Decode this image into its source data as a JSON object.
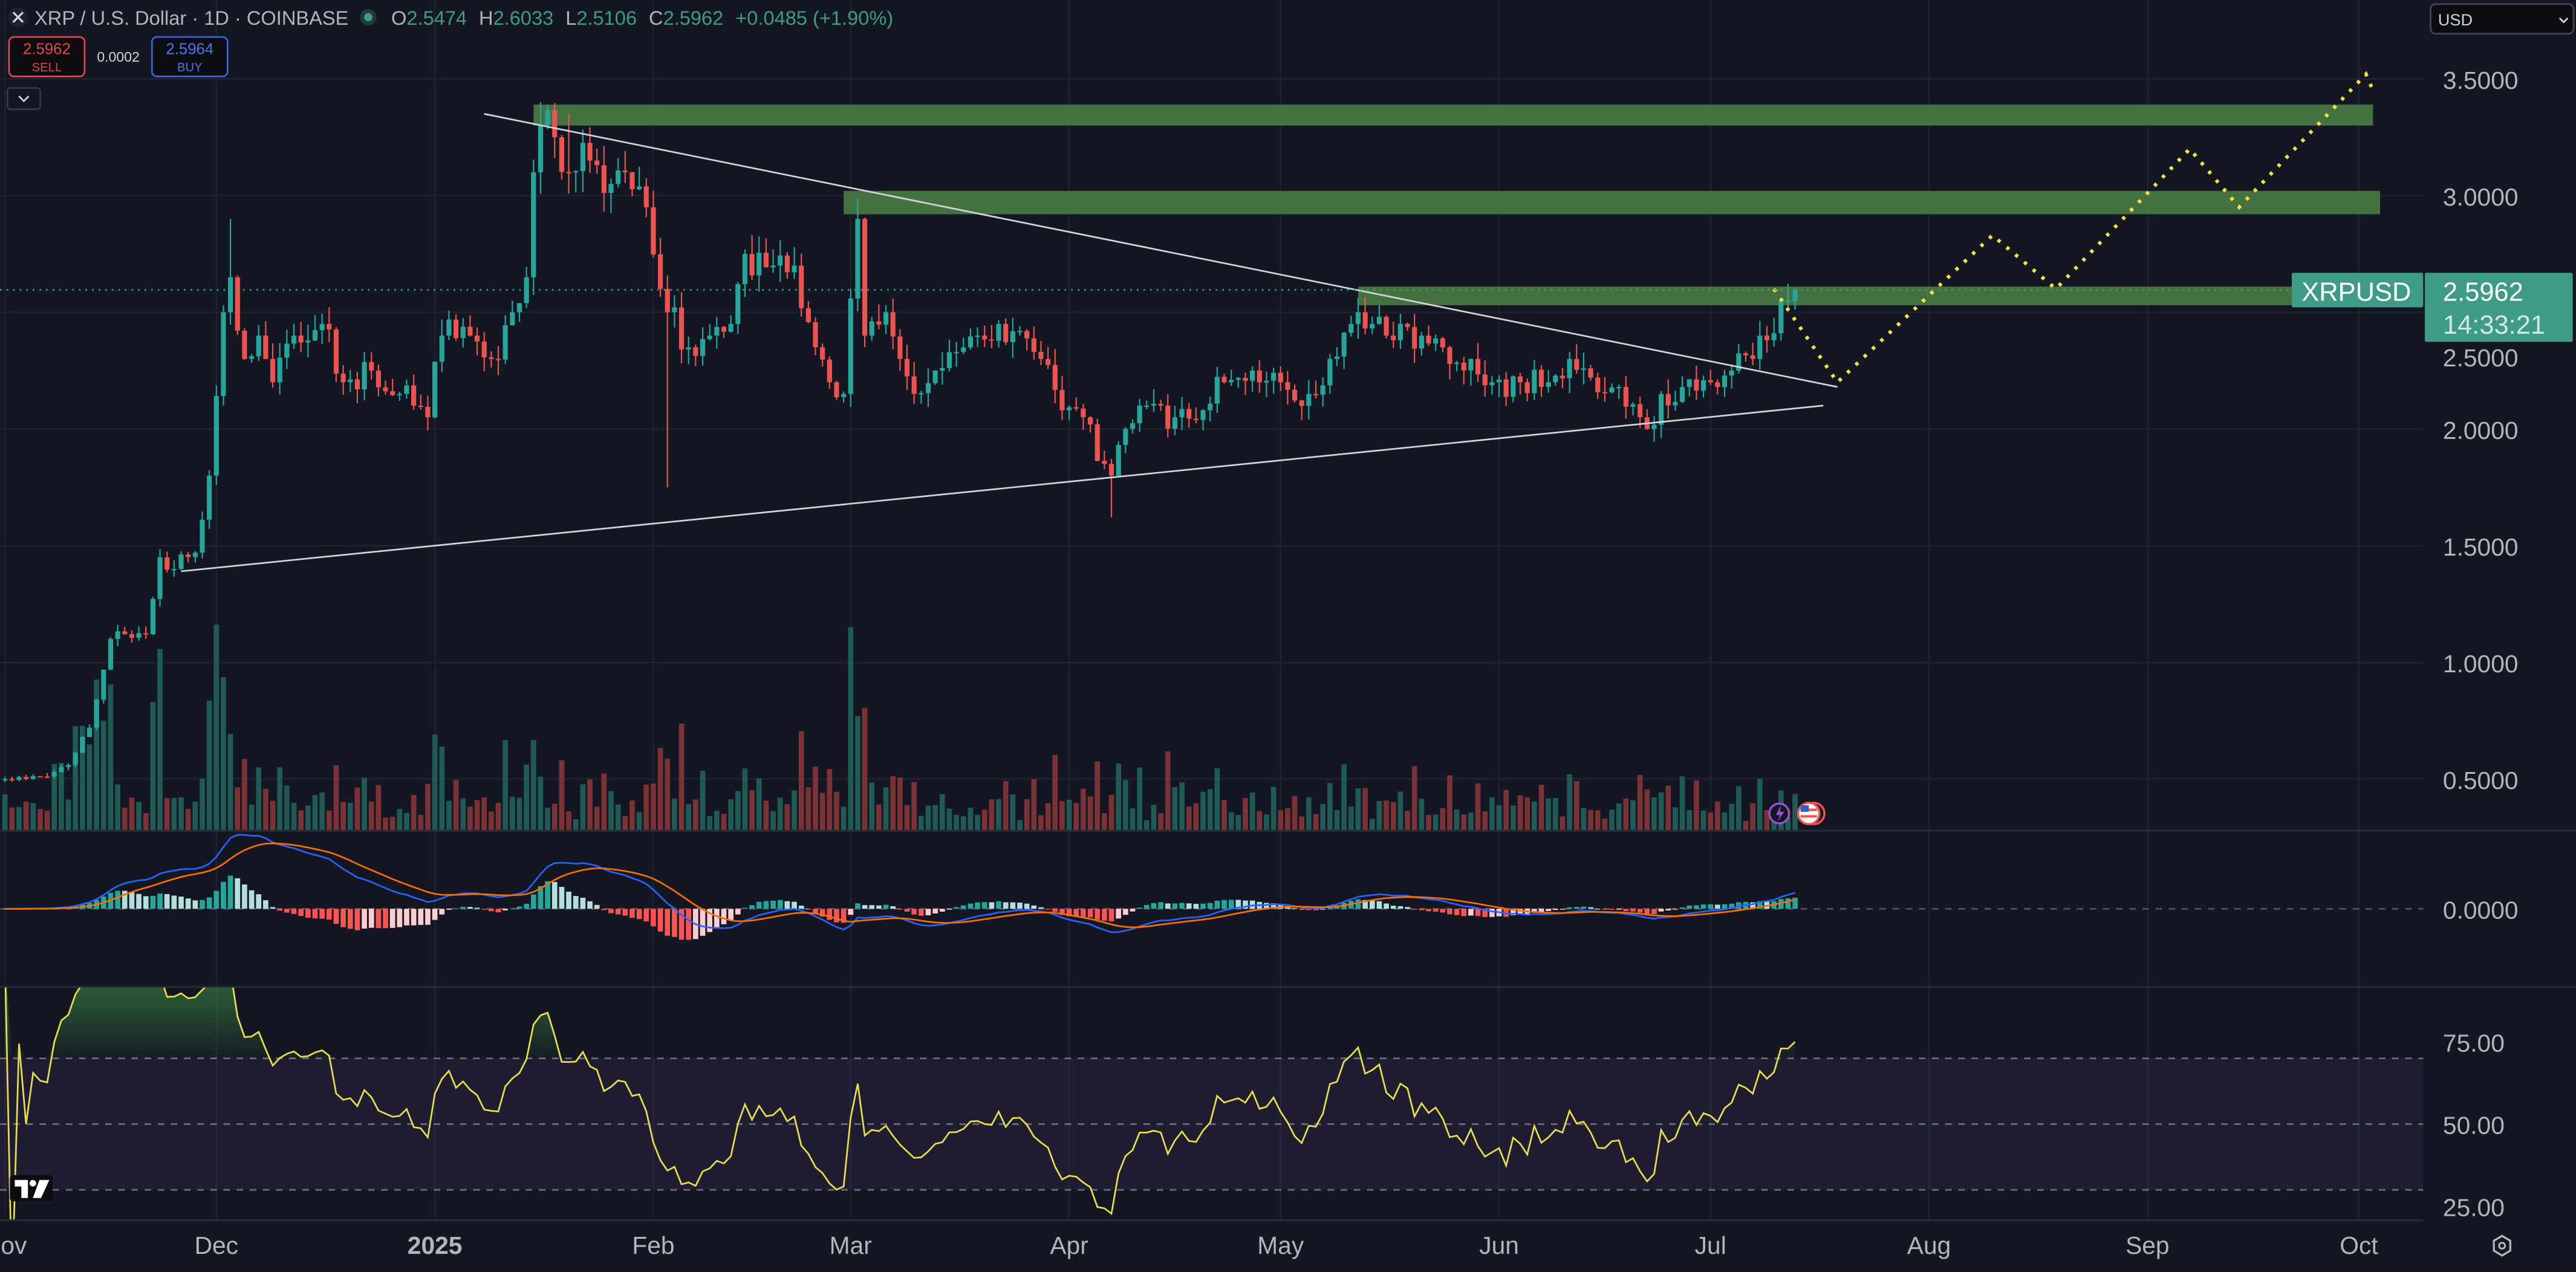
{
  "header": {
    "symbol_title": "XRP / U.S. Dollar · 1D · COINBASE",
    "ohlc": {
      "o_label": "O",
      "o": "2.5474",
      "h_label": "H",
      "h": "2.6033",
      "l_label": "L",
      "l": "2.5106",
      "c_label": "C",
      "c": "2.5962",
      "change": "+0.0485 (+1.90%)"
    },
    "sell": {
      "price": "2.5962",
      "label": "SELL"
    },
    "spread": "0.0002",
    "buy": {
      "price": "2.5964",
      "label": "BUY"
    },
    "collapse_icon": "chevron-down-icon",
    "market_status_icon": "green-dot-icon"
  },
  "currency_select": {
    "value": "USD"
  },
  "price_tag": {
    "symbol": "XRPUSD",
    "price": "2.5962",
    "countdown": "14:33:21"
  },
  "colors": {
    "background": "#131722",
    "up": "#26a69a",
    "down": "#ef5350",
    "zone": "#4a7a44",
    "projection": "#f5e342",
    "macd": "#2962ff",
    "signal": "#ff6d00",
    "rsi": "#e9df4a",
    "tag": "#3f9a86"
  },
  "chart_data": {
    "type": "candlestick",
    "symbol": "XRPUSD",
    "interval": "1D",
    "x_ticks": [
      {
        "date": "2024-11-01",
        "label": "Nov"
      },
      {
        "date": "2024-12-01",
        "label": "Dec"
      },
      {
        "date": "2025-01-01",
        "label": "2025",
        "bold": true
      },
      {
        "date": "2025-02-01",
        "label": "Feb"
      },
      {
        "date": "2025-03-01",
        "label": "Mar"
      },
      {
        "date": "2025-04-01",
        "label": "Apr"
      },
      {
        "date": "2025-05-01",
        "label": "May"
      },
      {
        "date": "2025-06-01",
        "label": "Jun"
      },
      {
        "date": "2025-07-01",
        "label": "Jul"
      },
      {
        "date": "2025-08-01",
        "label": "Aug"
      },
      {
        "date": "2025-09-01",
        "label": "Sep"
      },
      {
        "date": "2025-10-01",
        "label": "Oct"
      }
    ],
    "x_range": [
      "2024-11-01",
      "2025-10-10"
    ],
    "price_axis": {
      "ylim": [
        0.4,
        3.65
      ],
      "ticks": [
        "3.5000",
        "3.0000",
        "2.5000",
        "2.0000",
        "1.5000",
        "1.0000",
        "0.5000"
      ],
      "tick_values": [
        3.5,
        3.0,
        2.5,
        2.0,
        1.5,
        1.0,
        0.5
      ]
    },
    "close_keypoints": [
      [
        "2024-11-01",
        0.5
      ],
      [
        "2024-11-04",
        0.5
      ],
      [
        "2024-11-08",
        0.53
      ],
      [
        "2024-11-10",
        0.56
      ],
      [
        "2024-11-12",
        0.68
      ],
      [
        "2024-11-13",
        0.72
      ],
      [
        "2024-11-16",
        1.1
      ],
      [
        "2024-11-18",
        1.12
      ],
      [
        "2024-11-21",
        1.12
      ],
      [
        "2024-11-23",
        1.45
      ],
      [
        "2024-11-25",
        1.4
      ],
      [
        "2024-11-28",
        1.47
      ],
      [
        "2024-11-30",
        1.8
      ],
      [
        "2024-12-02",
        2.5
      ],
      [
        "2024-12-03",
        2.65
      ],
      [
        "2024-12-05",
        2.3
      ],
      [
        "2024-12-07",
        2.4
      ],
      [
        "2024-12-09",
        2.2
      ],
      [
        "2024-12-12",
        2.4
      ],
      [
        "2024-12-16",
        2.45
      ],
      [
        "2024-12-19",
        2.2
      ],
      [
        "2024-12-23",
        2.25
      ],
      [
        "2024-12-27",
        2.15
      ],
      [
        "2024-12-31",
        2.05
      ],
      [
        "2025-01-02",
        2.4
      ],
      [
        "2025-01-06",
        2.4
      ],
      [
        "2025-01-09",
        2.3
      ],
      [
        "2025-01-12",
        2.5
      ],
      [
        "2025-01-14",
        2.65
      ],
      [
        "2025-01-15",
        3.1
      ],
      [
        "2025-01-16",
        3.3
      ],
      [
        "2025-01-18",
        3.25
      ],
      [
        "2025-01-20",
        3.1
      ],
      [
        "2025-01-23",
        3.15
      ],
      [
        "2025-01-26",
        3.05
      ],
      [
        "2025-01-28",
        3.1
      ],
      [
        "2025-01-31",
        2.95
      ],
      [
        "2025-02-02",
        2.6
      ],
      [
        "2025-02-03",
        2.5
      ],
      [
        "2025-02-06",
        2.35
      ],
      [
        "2025-02-09",
        2.4
      ],
      [
        "2025-02-12",
        2.45
      ],
      [
        "2025-02-14",
        2.75
      ],
      [
        "2025-02-18",
        2.7
      ],
      [
        "2025-02-21",
        2.7
      ],
      [
        "2025-02-24",
        2.35
      ],
      [
        "2025-02-26",
        2.2
      ],
      [
        "2025-02-28",
        2.15
      ],
      [
        "2025-03-02",
        2.9
      ],
      [
        "2025-03-03",
        2.4
      ],
      [
        "2025-03-06",
        2.5
      ],
      [
        "2025-03-08",
        2.3
      ],
      [
        "2025-03-10",
        2.15
      ],
      [
        "2025-03-13",
        2.25
      ],
      [
        "2025-03-17",
        2.35
      ],
      [
        "2025-03-19",
        2.4
      ],
      [
        "2025-03-22",
        2.45
      ],
      [
        "2025-03-25",
        2.42
      ],
      [
        "2025-03-28",
        2.3
      ],
      [
        "2025-03-31",
        2.08
      ],
      [
        "2025-04-03",
        2.05
      ],
      [
        "2025-04-06",
        1.85
      ],
      [
        "2025-04-07",
        1.8
      ],
      [
        "2025-04-09",
        2.0
      ],
      [
        "2025-04-12",
        2.1
      ],
      [
        "2025-04-16",
        2.05
      ],
      [
        "2025-04-20",
        2.08
      ],
      [
        "2025-04-23",
        2.2
      ],
      [
        "2025-04-27",
        2.25
      ],
      [
        "2025-05-01",
        2.2
      ],
      [
        "2025-05-05",
        2.15
      ],
      [
        "2025-05-08",
        2.3
      ],
      [
        "2025-05-11",
        2.45
      ],
      [
        "2025-05-12",
        2.5
      ],
      [
        "2025-05-14",
        2.45
      ],
      [
        "2025-05-17",
        2.38
      ],
      [
        "2025-05-21",
        2.4
      ],
      [
        "2025-05-24",
        2.35
      ],
      [
        "2025-05-28",
        2.3
      ],
      [
        "2025-05-31",
        2.2
      ],
      [
        "2025-06-04",
        2.2
      ],
      [
        "2025-06-08",
        2.2
      ],
      [
        "2025-06-11",
        2.3
      ],
      [
        "2025-06-14",
        2.22
      ],
      [
        "2025-06-18",
        2.18
      ],
      [
        "2025-06-21",
        2.05
      ],
      [
        "2025-06-22",
        2.0
      ],
      [
        "2025-06-24",
        2.15
      ],
      [
        "2025-06-27",
        2.18
      ],
      [
        "2025-07-01",
        2.2
      ],
      [
        "2025-07-04",
        2.25
      ],
      [
        "2025-07-07",
        2.3
      ],
      [
        "2025-07-09",
        2.38
      ],
      [
        "2025-07-11",
        2.55
      ],
      [
        "2025-07-12",
        2.55
      ],
      [
        "2025-07-13",
        2.5962
      ]
    ],
    "last_candle": {
      "date": "2025-07-13",
      "open": 2.5474,
      "high": 2.6033,
      "low": 2.5106,
      "close": 2.5962
    },
    "wick_extremes": [
      {
        "date": "2024-12-03",
        "high": 2.9
      },
      {
        "date": "2025-01-16",
        "high": 3.4
      },
      {
        "date": "2025-01-20",
        "high": 3.35
      },
      {
        "date": "2025-02-03",
        "low": 1.75
      },
      {
        "date": "2025-03-02",
        "high": 2.99
      },
      {
        "date": "2025-04-07",
        "low": 1.62
      }
    ],
    "drawings": {
      "zones": [
        {
          "from": "2025-01-15",
          "to": "2025-10-03",
          "low": 3.3,
          "high": 3.39
        },
        {
          "from": "2025-02-28",
          "to": "2025-10-04",
          "low": 2.92,
          "high": 3.02
        },
        {
          "from": "2025-05-12",
          "to": "2025-10-15",
          "low": 2.53,
          "high": 2.61
        }
      ],
      "trendlines": [
        {
          "from": [
            "2025-01-08",
            3.35
          ],
          "to": [
            "2025-07-19",
            2.18
          ]
        },
        {
          "from": [
            "2024-11-26",
            1.39
          ],
          "to": [
            "2025-07-17",
            2.1
          ]
        }
      ],
      "projection": [
        [
          "2025-07-10",
          2.6
        ],
        [
          "2025-07-19",
          2.2
        ],
        [
          "2025-08-10",
          2.83
        ],
        [
          "2025-08-19",
          2.6
        ],
        [
          "2025-09-07",
          3.2
        ],
        [
          "2025-09-14",
          2.95
        ],
        [
          "2025-10-02",
          3.52
        ],
        [
          "2025-10-03",
          3.45
        ]
      ]
    },
    "macd": {
      "fast": 12,
      "slow": 26,
      "signal": 9,
      "ticks": [
        "0.0000"
      ]
    },
    "rsi": {
      "period": 14,
      "ticks": [
        "75.00",
        "50.00",
        "25.00"
      ],
      "bands": [
        70,
        50,
        30
      ]
    },
    "events": [
      "lightning-event-icon",
      "us-flag-event-icon"
    ]
  }
}
